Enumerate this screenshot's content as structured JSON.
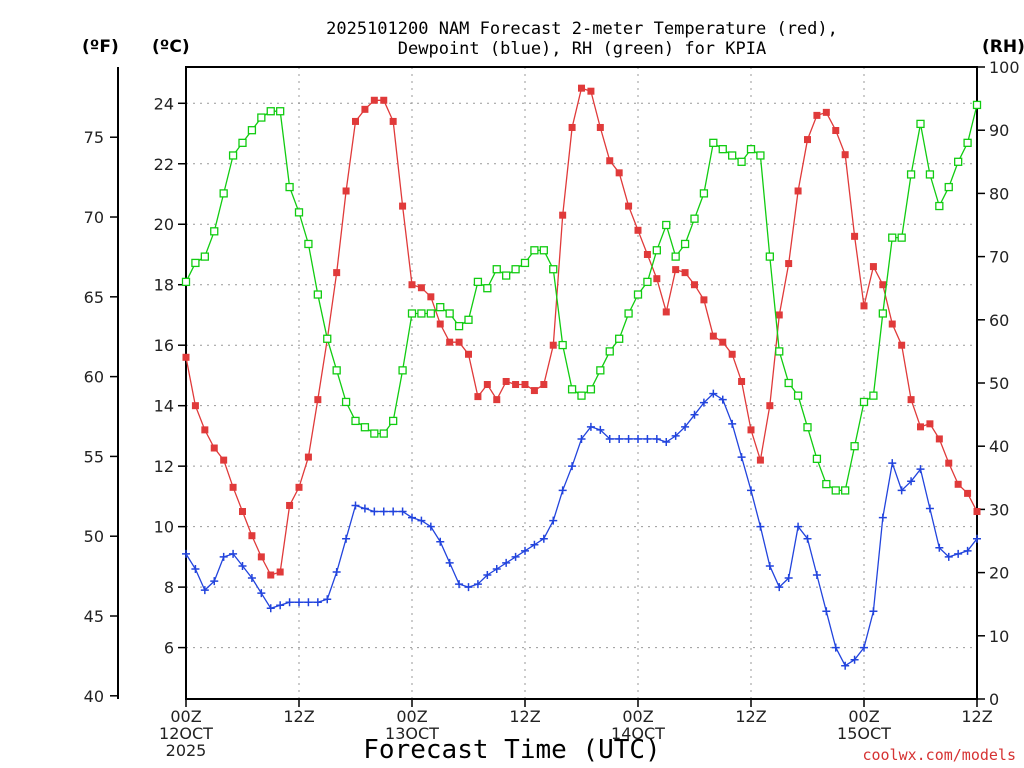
{
  "chart_data": {
    "type": "line",
    "title_lines": [
      "2025101200 NAM Forecast 2-meter Temperature (red),",
      "Dewpoint (blue), RH (green) for KPIA"
    ],
    "xlabel": "Forecast Time (UTC)",
    "credit": "coolwx.com/models",
    "left_axis_f": {
      "unit": "(ºF)",
      "ticks": [
        40,
        45,
        50,
        55,
        60,
        65,
        70,
        75
      ],
      "range": [
        39.8,
        79.4
      ]
    },
    "left_axis_c": {
      "unit": "(ºC)",
      "ticks": [
        6,
        8,
        10,
        12,
        14,
        16,
        18,
        20,
        22,
        24
      ],
      "range": [
        4.3,
        25.2
      ]
    },
    "right_axis_rh": {
      "unit": "(RH)",
      "ticks": [
        0,
        10,
        20,
        30,
        40,
        50,
        60,
        70,
        80,
        90,
        100
      ],
      "range": [
        0,
        100
      ]
    },
    "x_range_hours": [
      0,
      84
    ],
    "x_ticks": [
      {
        "h": 0,
        "lines": [
          "00Z",
          "12OCT",
          "2025"
        ]
      },
      {
        "h": 12,
        "lines": [
          "12Z"
        ]
      },
      {
        "h": 24,
        "lines": [
          "00Z",
          "13OCT"
        ]
      },
      {
        "h": 36,
        "lines": [
          "12Z"
        ]
      },
      {
        "h": 48,
        "lines": [
          "00Z",
          "14OCT"
        ]
      },
      {
        "h": 60,
        "lines": [
          "12Z"
        ]
      },
      {
        "h": 72,
        "lines": [
          "00Z",
          "15OCT"
        ]
      },
      {
        "h": 84,
        "lines": [
          "12Z"
        ]
      }
    ],
    "grid": true,
    "series": [
      {
        "name": "Temperature",
        "unit": "ºC",
        "color": "#e03a3a",
        "marker": "filled-square",
        "points": [
          [
            0,
            15.6
          ],
          [
            1,
            14.0
          ],
          [
            2,
            13.2
          ],
          [
            3,
            12.6
          ],
          [
            4,
            12.2
          ],
          [
            5,
            11.3
          ],
          [
            6,
            10.5
          ],
          [
            7,
            9.7
          ],
          [
            8,
            9.0
          ],
          [
            9,
            8.4
          ],
          [
            10,
            8.5
          ],
          [
            11,
            10.7
          ],
          [
            12,
            11.3
          ],
          [
            13,
            12.3
          ],
          [
            14,
            14.2
          ],
          [
            15,
            16.2
          ],
          [
            16,
            18.4
          ],
          [
            17,
            21.1
          ],
          [
            18,
            23.4
          ],
          [
            19,
            23.8
          ],
          [
            20,
            24.1
          ],
          [
            21,
            24.1
          ],
          [
            22,
            23.4
          ],
          [
            23,
            20.6
          ],
          [
            24,
            18.0
          ],
          [
            25,
            17.9
          ],
          [
            26,
            17.6
          ],
          [
            27,
            16.7
          ],
          [
            28,
            16.1
          ],
          [
            29,
            16.1
          ],
          [
            30,
            15.7
          ],
          [
            31,
            14.3
          ],
          [
            32,
            14.7
          ],
          [
            33,
            14.2
          ],
          [
            34,
            14.8
          ],
          [
            35,
            14.7
          ],
          [
            36,
            14.7
          ],
          [
            37,
            14.5
          ],
          [
            38,
            14.7
          ],
          [
            39,
            16.0
          ],
          [
            40,
            20.3
          ],
          [
            41,
            23.2
          ],
          [
            42,
            24.5
          ],
          [
            43,
            24.4
          ],
          [
            44,
            23.2
          ],
          [
            45,
            22.1
          ],
          [
            46,
            21.7
          ],
          [
            47,
            20.6
          ],
          [
            48,
            19.8
          ],
          [
            49,
            19.0
          ],
          [
            50,
            18.2
          ],
          [
            51,
            17.1
          ],
          [
            52,
            18.5
          ],
          [
            53,
            18.4
          ],
          [
            54,
            18.0
          ],
          [
            55,
            17.5
          ],
          [
            56,
            16.3
          ],
          [
            57,
            16.1
          ],
          [
            58,
            15.7
          ],
          [
            59,
            14.8
          ],
          [
            60,
            13.2
          ],
          [
            61,
            12.2
          ],
          [
            62,
            14.0
          ],
          [
            63,
            17.0
          ],
          [
            64,
            18.7
          ],
          [
            65,
            21.1
          ],
          [
            66,
            22.8
          ],
          [
            67,
            23.6
          ],
          [
            68,
            23.7
          ],
          [
            69,
            23.1
          ],
          [
            70,
            22.3
          ],
          [
            71,
            19.6
          ],
          [
            72,
            17.3
          ],
          [
            73,
            18.6
          ],
          [
            74,
            18.0
          ],
          [
            75,
            16.7
          ],
          [
            76,
            16.0
          ],
          [
            77,
            14.2
          ],
          [
            78,
            13.3
          ],
          [
            79,
            13.4
          ],
          [
            80,
            12.9
          ],
          [
            81,
            12.1
          ],
          [
            82,
            11.4
          ],
          [
            83,
            11.1
          ],
          [
            84,
            10.5
          ]
        ]
      },
      {
        "name": "Dewpoint",
        "unit": "ºC",
        "color": "#2244dd",
        "marker": "plus",
        "points": [
          [
            0,
            9.1
          ],
          [
            1,
            8.6
          ],
          [
            2,
            7.9
          ],
          [
            3,
            8.2
          ],
          [
            4,
            9.0
          ],
          [
            5,
            9.1
          ],
          [
            6,
            8.7
          ],
          [
            7,
            8.3
          ],
          [
            8,
            7.8
          ],
          [
            9,
            7.3
          ],
          [
            10,
            7.4
          ],
          [
            11,
            7.5
          ],
          [
            12,
            7.5
          ],
          [
            13,
            7.5
          ],
          [
            14,
            7.5
          ],
          [
            15,
            7.6
          ],
          [
            16,
            8.5
          ],
          [
            17,
            9.6
          ],
          [
            18,
            10.7
          ],
          [
            19,
            10.6
          ],
          [
            20,
            10.5
          ],
          [
            21,
            10.5
          ],
          [
            22,
            10.5
          ],
          [
            23,
            10.5
          ],
          [
            24,
            10.3
          ],
          [
            25,
            10.2
          ],
          [
            26,
            10.0
          ],
          [
            27,
            9.5
          ],
          [
            28,
            8.8
          ],
          [
            29,
            8.1
          ],
          [
            30,
            8.0
          ],
          [
            31,
            8.1
          ],
          [
            32,
            8.4
          ],
          [
            33,
            8.6
          ],
          [
            34,
            8.8
          ],
          [
            35,
            9.0
          ],
          [
            36,
            9.2
          ],
          [
            37,
            9.4
          ],
          [
            38,
            9.6
          ],
          [
            39,
            10.2
          ],
          [
            40,
            11.2
          ],
          [
            41,
            12.0
          ],
          [
            42,
            12.9
          ],
          [
            43,
            13.3
          ],
          [
            44,
            13.2
          ],
          [
            45,
            12.9
          ],
          [
            46,
            12.9
          ],
          [
            47,
            12.9
          ],
          [
            48,
            12.9
          ],
          [
            49,
            12.9
          ],
          [
            50,
            12.9
          ],
          [
            51,
            12.8
          ],
          [
            52,
            13.0
          ],
          [
            53,
            13.3
          ],
          [
            54,
            13.7
          ],
          [
            55,
            14.1
          ],
          [
            56,
            14.4
          ],
          [
            57,
            14.2
          ],
          [
            58,
            13.4
          ],
          [
            59,
            12.3
          ],
          [
            60,
            11.2
          ],
          [
            61,
            10.0
          ],
          [
            62,
            8.7
          ],
          [
            63,
            8.0
          ],
          [
            64,
            8.3
          ],
          [
            65,
            10.0
          ],
          [
            66,
            9.6
          ],
          [
            67,
            8.4
          ],
          [
            68,
            7.2
          ],
          [
            69,
            6.0
          ],
          [
            70,
            5.4
          ],
          [
            71,
            5.6
          ],
          [
            72,
            6.0
          ],
          [
            73,
            7.2
          ],
          [
            74,
            10.3
          ],
          [
            75,
            12.1
          ],
          [
            76,
            11.2
          ],
          [
            77,
            11.5
          ],
          [
            78,
            11.9
          ],
          [
            79,
            10.6
          ],
          [
            80,
            9.3
          ],
          [
            81,
            9.0
          ],
          [
            82,
            9.1
          ],
          [
            83,
            9.2
          ],
          [
            84,
            9.6
          ]
        ]
      },
      {
        "name": "RH",
        "unit": "%",
        "color": "#11cc11",
        "marker": "open-square",
        "points": [
          [
            0,
            66
          ],
          [
            1,
            69
          ],
          [
            2,
            70
          ],
          [
            3,
            74
          ],
          [
            4,
            80
          ],
          [
            5,
            86
          ],
          [
            6,
            88
          ],
          [
            7,
            90
          ],
          [
            8,
            92
          ],
          [
            9,
            93
          ],
          [
            10,
            93
          ],
          [
            11,
            81
          ],
          [
            12,
            77
          ],
          [
            13,
            72
          ],
          [
            14,
            64
          ],
          [
            15,
            57
          ],
          [
            16,
            52
          ],
          [
            17,
            47
          ],
          [
            18,
            44
          ],
          [
            19,
            43
          ],
          [
            20,
            42
          ],
          [
            21,
            42
          ],
          [
            22,
            44
          ],
          [
            23,
            52
          ],
          [
            24,
            61
          ],
          [
            25,
            61
          ],
          [
            26,
            61
          ],
          [
            27,
            62
          ],
          [
            28,
            61
          ],
          [
            29,
            59
          ],
          [
            30,
            60
          ],
          [
            31,
            66
          ],
          [
            32,
            65
          ],
          [
            33,
            68
          ],
          [
            34,
            67
          ],
          [
            35,
            68
          ],
          [
            36,
            69
          ],
          [
            37,
            71
          ],
          [
            38,
            71
          ],
          [
            39,
            68
          ],
          [
            40,
            56
          ],
          [
            41,
            49
          ],
          [
            42,
            48
          ],
          [
            43,
            49
          ],
          [
            44,
            52
          ],
          [
            45,
            55
          ],
          [
            46,
            57
          ],
          [
            47,
            61
          ],
          [
            48,
            64
          ],
          [
            49,
            66
          ],
          [
            50,
            71
          ],
          [
            51,
            75
          ],
          [
            52,
            70
          ],
          [
            53,
            72
          ],
          [
            54,
            76
          ],
          [
            55,
            80
          ],
          [
            56,
            88
          ],
          [
            57,
            87
          ],
          [
            58,
            86
          ],
          [
            59,
            85
          ],
          [
            60,
            87
          ],
          [
            61,
            86
          ],
          [
            62,
            70
          ],
          [
            63,
            55
          ],
          [
            64,
            50
          ],
          [
            65,
            48
          ],
          [
            66,
            43
          ],
          [
            67,
            38
          ],
          [
            68,
            34
          ],
          [
            69,
            33
          ],
          [
            70,
            33
          ],
          [
            71,
            40
          ],
          [
            72,
            47
          ],
          [
            73,
            48
          ],
          [
            74,
            61
          ],
          [
            75,
            73
          ],
          [
            76,
            73
          ],
          [
            77,
            83
          ],
          [
            78,
            91
          ],
          [
            79,
            83
          ],
          [
            80,
            78
          ],
          [
            81,
            81
          ],
          [
            82,
            85
          ],
          [
            83,
            88
          ],
          [
            84,
            94
          ]
        ]
      }
    ]
  }
}
